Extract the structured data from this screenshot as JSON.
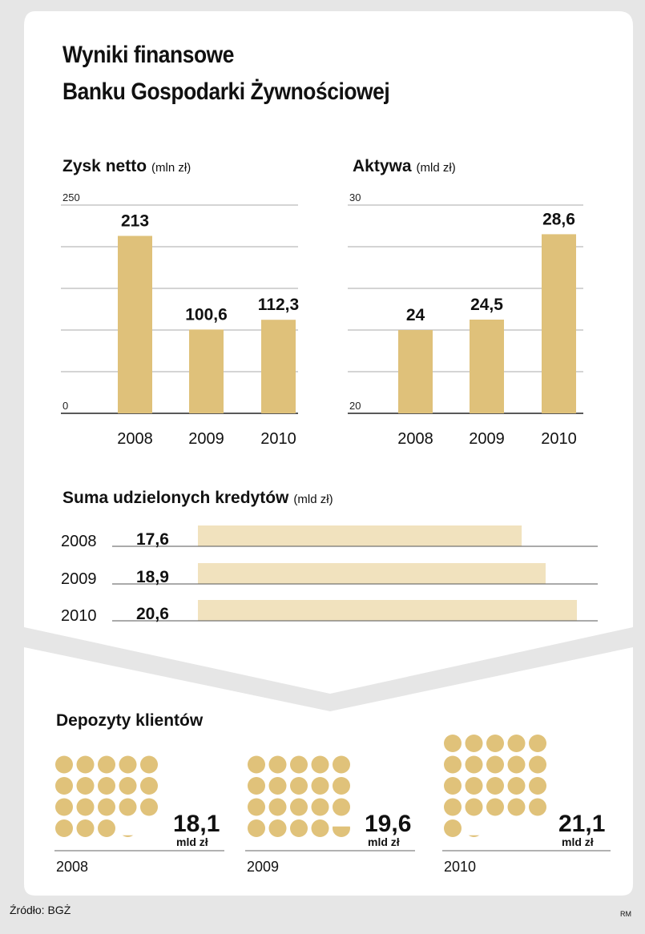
{
  "title_line1": "Wyniki finansowe",
  "title_line2": "Banku Gospodarki Żywnościowej",
  "source": "Źródło: BGŻ",
  "author": "RM",
  "colors": {
    "bar": "#dfc17a",
    "hbar": "#f1e2be",
    "coin": "#e0c27a",
    "grid": "#aaaaaa",
    "panel": "#ffffff",
    "background": "#e6e6e6"
  },
  "chart_data": [
    {
      "type": "bar",
      "title": "Zysk netto",
      "unit": "(mln zł)",
      "categories": [
        "2008",
        "2009",
        "2010"
      ],
      "values": [
        213,
        100.6,
        112.3
      ],
      "value_labels": [
        "213",
        "100,6",
        "112,3"
      ],
      "ylim": [
        0,
        250
      ],
      "y_tick_labels": [
        "250",
        "0"
      ],
      "grid": true
    },
    {
      "type": "bar",
      "title": "Aktywa",
      "unit": "(mld zł)",
      "categories": [
        "2008",
        "2009",
        "2010"
      ],
      "values": [
        24,
        24.5,
        28.6
      ],
      "value_labels": [
        "24",
        "24,5",
        "28,6"
      ],
      "ylim": [
        20,
        30
      ],
      "y_tick_labels": [
        "30",
        "20"
      ],
      "grid": true
    },
    {
      "type": "bar",
      "orientation": "horizontal",
      "title": "Suma udzielonych kredytów",
      "unit": "(mld zł)",
      "categories": [
        "2008",
        "2009",
        "2010"
      ],
      "values": [
        17.6,
        18.9,
        20.6
      ],
      "value_labels": [
        "17,6",
        "18,9",
        "20,6"
      ]
    },
    {
      "type": "pictogram",
      "title": "Depozyty klientów",
      "unit_label": "mld zł",
      "categories": [
        "2008",
        "2009",
        "2010"
      ],
      "values": [
        18.1,
        19.6,
        21.1
      ],
      "value_labels": [
        "18,1",
        "19,6",
        "21,1"
      ]
    }
  ]
}
